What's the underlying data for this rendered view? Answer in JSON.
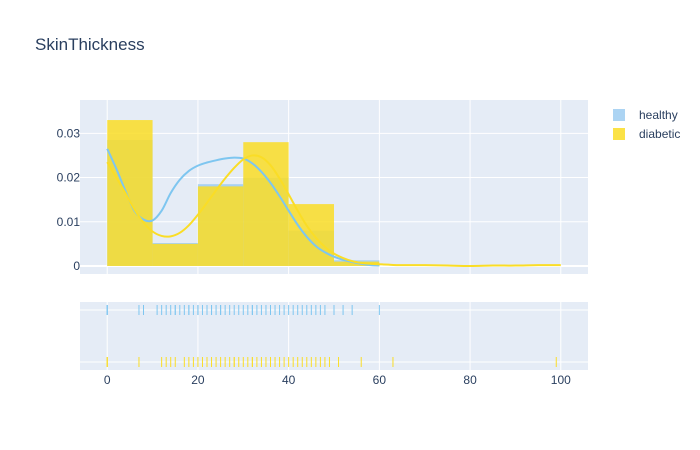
{
  "chart_data": {
    "type": "histogram_distplot",
    "title": "SkinThickness",
    "x_ticks": [
      "0",
      "20",
      "40",
      "60",
      "80",
      "100"
    ],
    "x_tick_values": [
      0,
      20,
      40,
      60,
      80,
      100
    ],
    "xlim": [
      -6,
      106
    ],
    "y_ticks": [
      "0",
      "0.01",
      "0.02",
      "0.03"
    ],
    "y_tick_values": [
      0,
      0.01,
      0.02,
      0.03
    ],
    "ylim": [
      0,
      0.0355
    ],
    "grid": true,
    "legend_position": "top-right",
    "bin_edges": [
      0,
      10,
      20,
      30,
      40,
      50,
      60
    ],
    "series": [
      {
        "name": "healthy",
        "color": "#7ec6f0",
        "bar_color": "#9dccf1",
        "hist": [
          0.0285,
          0.0052,
          0.0185,
          0.02,
          0.008,
          0.0013
        ],
        "kde_x": [
          0,
          2,
          4,
          6,
          8,
          10,
          12,
          14,
          16,
          18,
          20,
          22,
          24,
          26,
          28,
          30,
          32,
          34,
          36,
          38,
          40,
          42,
          44,
          46,
          48,
          50,
          52,
          54,
          56,
          58,
          60
        ],
        "kde_y": [
          0.0265,
          0.022,
          0.017,
          0.0125,
          0.0105,
          0.0103,
          0.0125,
          0.0165,
          0.0195,
          0.0215,
          0.0227,
          0.0234,
          0.0239,
          0.0243,
          0.0245,
          0.0243,
          0.0232,
          0.0213,
          0.0188,
          0.0158,
          0.0125,
          0.0093,
          0.0066,
          0.0045,
          0.0031,
          0.0021,
          0.0014,
          0.0009,
          0.0005,
          0.0002,
          0.0001
        ],
        "rug": [
          0,
          0,
          0,
          7,
          8,
          11,
          12,
          13,
          14,
          15,
          15,
          16,
          17,
          18,
          18,
          19,
          20,
          20,
          21,
          22,
          23,
          23,
          24,
          25,
          25,
          26,
          27,
          28,
          29,
          30,
          31,
          32,
          32,
          33,
          34,
          35,
          36,
          37,
          38,
          39,
          40,
          41,
          42,
          43,
          44,
          45,
          46,
          47,
          48,
          50,
          52,
          54,
          60
        ]
      },
      {
        "name": "diabetic",
        "color": "#fadd26",
        "bar_color": "#fadd26",
        "hist": [
          0.033,
          0.005,
          0.018,
          0.028,
          0.014,
          0.001
        ],
        "kde_x": [
          0,
          2,
          4,
          6,
          8,
          10,
          12,
          14,
          16,
          18,
          20,
          22,
          24,
          26,
          28,
          30,
          32,
          34,
          36,
          38,
          40,
          42,
          44,
          46,
          48,
          50,
          52,
          54,
          56,
          58,
          60,
          62,
          64,
          66,
          70,
          75,
          80,
          85,
          90,
          95,
          100
        ],
        "kde_y": [
          0.0235,
          0.02,
          0.0165,
          0.0128,
          0.0098,
          0.0078,
          0.0068,
          0.0067,
          0.0075,
          0.0092,
          0.0116,
          0.0143,
          0.0171,
          0.0198,
          0.0222,
          0.0241,
          0.025,
          0.0246,
          0.0228,
          0.0198,
          0.0162,
          0.0125,
          0.0091,
          0.0064,
          0.0043,
          0.0028,
          0.0018,
          0.0011,
          0.0007,
          0.0005,
          0.0004,
          0.0003,
          0.0002,
          0.0002,
          0.0002,
          0.0001,
          0.0,
          0.0001,
          0.0001,
          0.0002,
          0.0002
        ],
        "rug": [
          0,
          0,
          0,
          7,
          12,
          13,
          14,
          15,
          17,
          18,
          19,
          20,
          21,
          22,
          23,
          24,
          25,
          26,
          27,
          28,
          28,
          29,
          30,
          31,
          32,
          32,
          33,
          34,
          35,
          36,
          37,
          38,
          39,
          40,
          41,
          42,
          43,
          44,
          45,
          46,
          47,
          48,
          49,
          51,
          56,
          63,
          99
        ]
      }
    ]
  }
}
